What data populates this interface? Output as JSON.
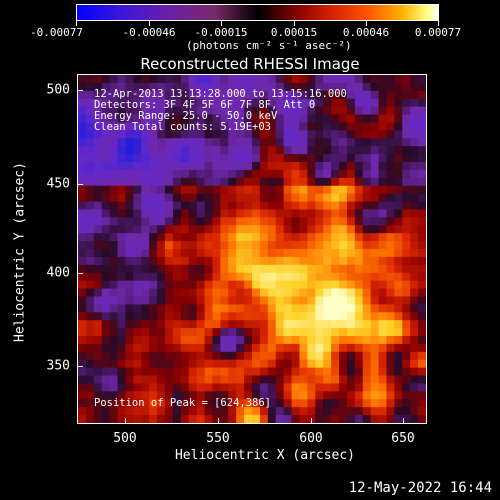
{
  "colorbar": {
    "ticks": [
      "-0.00077",
      "-0.00046",
      "-0.00015",
      "0.00015",
      "0.00046",
      "0.00077"
    ],
    "units": "(photons cm⁻² s⁻¹ asec⁻²)"
  },
  "title": "Reconstructed RHESSI Image",
  "annotations": {
    "time": "12-Apr-2013 13:13:28.000 to 13:15:16.000",
    "detectors": "Detectors: 3F 4F 5F 6F 7F 8F, Att 0",
    "energy": "Energy Range: 25.0 - 50.0 keV",
    "clean": "Clean    Total counts: 5.19E+03",
    "peak": "Position of Peak = [624,386]"
  },
  "axes": {
    "xlabel": "Heliocentric X (arcsec)",
    "ylabel": "Heliocentric Y (arcsec)",
    "xticks": [
      "500",
      "550",
      "600",
      "650"
    ],
    "yticks": [
      "500",
      "450",
      "400",
      "350"
    ]
  },
  "footer": "12-May-2022 16:44"
}
